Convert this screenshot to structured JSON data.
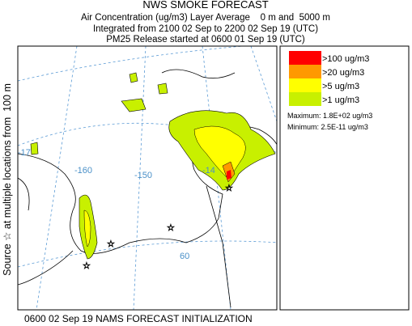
{
  "header": {
    "title": "NWS SMOKE FORECAST",
    "lines": [
      "Air Concentration (ug/m3) Layer Average    0 m and  5000 m",
      "Integrated from 2100 02 Sep to 2200 02 Sep 19 (UTC)",
      "PM25 Release started at 0600 01 Sep 19 (UTC)"
    ]
  },
  "side_label": "Source ☆ at multiple locations from  100 m",
  "legend": {
    "items": [
      {
        "label": ">100 ug/m3",
        "color": "#ff0000"
      },
      {
        "label": ">20 ug/m3",
        "color": "#ff9900"
      },
      {
        "label": ">5 ug/m3",
        "color": "#ffff00"
      },
      {
        "label": ">1 ug/m3",
        "color": "#c8f000"
      }
    ],
    "maximum": "Maximum: 1.8E+02 ug/m3",
    "minimum": "Minimum: 2.5E-11 ug/m3"
  },
  "map": {
    "grid_labels": [
      "-17",
      "-160",
      "-150",
      "-14",
      "60"
    ]
  },
  "footer": "0600 02 Sep 19 NAMS FORECAST INITIALIZATION"
}
